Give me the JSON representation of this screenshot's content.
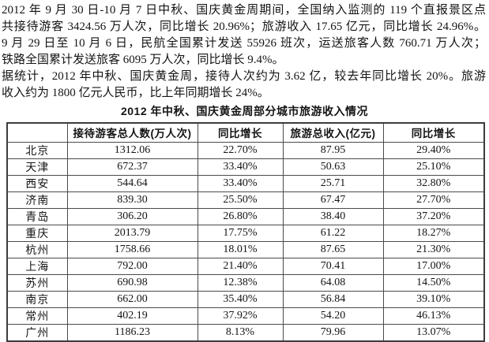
{
  "colors": {
    "background": "#ffffff",
    "ink": "#141414",
    "table_border": "#4a4a4a"
  },
  "page": {
    "paragraph1_lines": [
      "2012 年 9 月 30 日-10 月 7 日中秋、国庆黄金周期间，全国纳入监测的 119 个直报景区点",
      "共接待游客 3424.56 万人次，同比增长 20.96%；旅游收入 17.65 亿元，同比增长 24.96%。",
      "9 月 29 日至 10 月 6 日，民航全国累计发送 55926 班次，运送旅客人数 760.71 万人次；",
      "铁路全国累计发送旅客 6095 万人次，同比增长 9.4%。"
    ],
    "paragraph2_lines": [
      "据统计，2012 年中秋、国庆黄金周，接待人次约为 3.62 亿，较去年同比增长 20%。旅游",
      "收入约为 1800 亿元人民币，比上年同期增长 24%。"
    ]
  },
  "table": {
    "title": "2012 年中秋、国庆黄金周部分城市旅游收入情况",
    "headers": [
      "",
      "接待游客总人数(万人次)",
      "同比增长",
      "旅游总收入(亿元)",
      "同比增长"
    ],
    "rows": [
      {
        "city": "北京",
        "visitors": "1312.06",
        "visitor_growth": "22.70%",
        "revenue": "87.95",
        "revenue_growth": "29.40%"
      },
      {
        "city": "天津",
        "visitors": "672.37",
        "visitor_growth": "33.40%",
        "revenue": "50.63",
        "revenue_growth": "25.10%"
      },
      {
        "city": "西安",
        "visitors": "544.64",
        "visitor_growth": "33.40%",
        "revenue": "25.71",
        "revenue_growth": "32.80%"
      },
      {
        "city": "济南",
        "visitors": "839.30",
        "visitor_growth": "25.50%",
        "revenue": "67.47",
        "revenue_growth": "27.70%"
      },
      {
        "city": "青岛",
        "visitors": "306.20",
        "visitor_growth": "26.80%",
        "revenue": "38.40",
        "revenue_growth": "37.20%"
      },
      {
        "city": "重庆",
        "visitors": "2013.79",
        "visitor_growth": "17.75%",
        "revenue": "61.22",
        "revenue_growth": "18.27%"
      },
      {
        "city": "杭州",
        "visitors": "1758.66",
        "visitor_growth": "18.01%",
        "revenue": "87.65",
        "revenue_growth": "21.30%"
      },
      {
        "city": "上海",
        "visitors": "792.00",
        "visitor_growth": "21.40%",
        "revenue": "70.41",
        "revenue_growth": "17.00%"
      },
      {
        "city": "苏州",
        "visitors": "690.98",
        "visitor_growth": "12.38%",
        "revenue": "64.08",
        "revenue_growth": "14.50%"
      },
      {
        "city": "南京",
        "visitors": "662.00",
        "visitor_growth": "35.40%",
        "revenue": "56.84",
        "revenue_growth": "39.10%"
      },
      {
        "city": "常州",
        "visitors": "402.19",
        "visitor_growth": "37.92%",
        "revenue": "54.20",
        "revenue_growth": "46.13%"
      },
      {
        "city": "广州",
        "visitors": "1186.23",
        "visitor_growth": "8.13%",
        "revenue": "79.96",
        "revenue_growth": "13.07%"
      }
    ]
  }
}
